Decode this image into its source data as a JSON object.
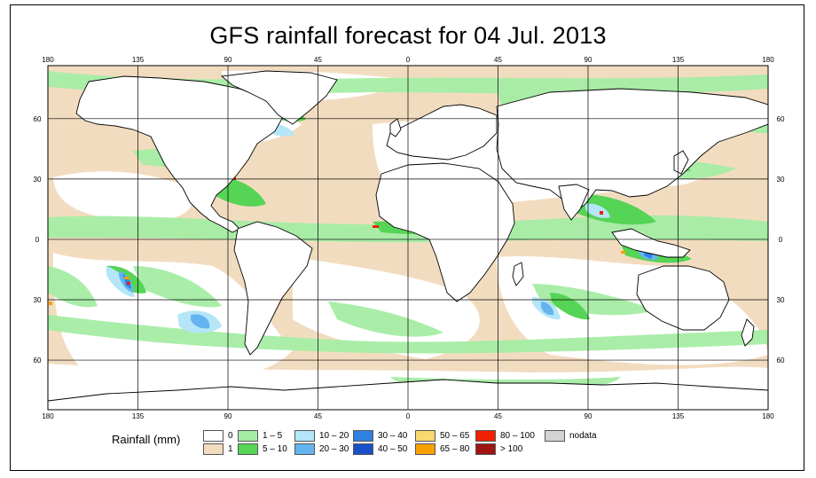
{
  "map": {
    "title": "GFS rainfall forecast for 04 Jul. 2013",
    "longitude_ticks": [
      "180",
      "135",
      "90",
      "45",
      "0",
      "45",
      "90",
      "135",
      "180"
    ],
    "latitude_ticks": [
      "60",
      "30",
      "0",
      "30",
      "60"
    ],
    "land_color": "#ffffff",
    "coastline_color": "#000000"
  },
  "legend": {
    "title": "Rainfall (mm)",
    "items": [
      {
        "label": "0",
        "color": "#ffffff"
      },
      {
        "label": "1",
        "color": "#f2dcc0"
      },
      {
        "label": "1 – 5",
        "color": "#a5eda5"
      },
      {
        "label": "5 – 10",
        "color": "#55d455"
      },
      {
        "label": "10 – 20",
        "color": "#b4e6f8"
      },
      {
        "label": "20 – 30",
        "color": "#64b4f0"
      },
      {
        "label": "30 – 40",
        "color": "#2f80e0"
      },
      {
        "label": "40 – 50",
        "color": "#1a50c8"
      },
      {
        "label": "50 – 65",
        "color": "#f8d870"
      },
      {
        "label": "65 – 80",
        "color": "#f8a000"
      },
      {
        "label": "80 – 100",
        "color": "#f02000"
      },
      {
        "label": "> 100",
        "color": "#a01414"
      },
      {
        "label": "nodata",
        "color": "#d4d4d4"
      }
    ]
  }
}
